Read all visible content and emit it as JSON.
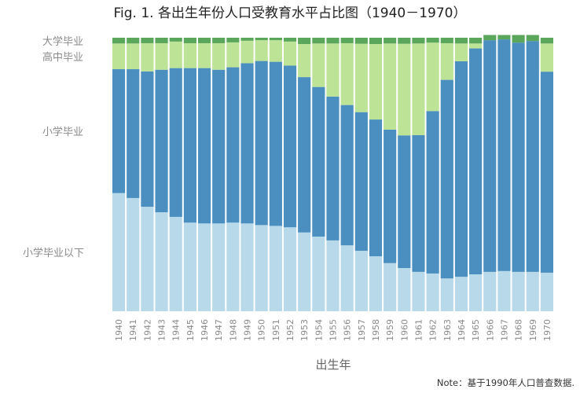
{
  "chart_data": {
    "type": "stacked-bar-100",
    "title": "Fig. 1. 各出生年份人口受教育水平占比图（1940－1970）",
    "xlabel": "出生年",
    "ylabel": "",
    "ylim": [
      0,
      100
    ],
    "note": "Note：基于1990年人口普查数据.",
    "categories": [
      "1940",
      "1941",
      "1942",
      "1943",
      "1944",
      "1945",
      "1946",
      "1947",
      "1948",
      "1949",
      "1950",
      "1951",
      "1952",
      "1953",
      "1954",
      "1955",
      "1956",
      "1957",
      "1958",
      "1959",
      "1960",
      "1961",
      "1962",
      "1963",
      "1964",
      "1965",
      "1966",
      "1967",
      "1968",
      "1969",
      "1970"
    ],
    "series": [
      {
        "name": "小学毕业以下",
        "color": "#b8d9ea",
        "values": [
          43.2,
          41.4,
          38.2,
          36.2,
          34.5,
          32.4,
          32.1,
          32.1,
          32.4,
          32.1,
          31.5,
          31.2,
          30.7,
          28.8,
          27.3,
          25.9,
          24.1,
          22.1,
          20.1,
          17.6,
          15.8,
          14.4,
          13.8,
          12.0,
          12.6,
          13.5,
          14.4,
          14.7,
          14.4,
          14.4,
          14.1
        ]
      },
      {
        "name": "小学毕业",
        "color": "#4a8fc0",
        "values": [
          45.3,
          47.1,
          49.5,
          52.1,
          54.4,
          56.5,
          56.8,
          56.2,
          56.8,
          58.6,
          60.0,
          60.0,
          59.1,
          56.8,
          54.7,
          52.6,
          51.3,
          50.7,
          50.0,
          48.8,
          48.5,
          50.0,
          59.4,
          72.6,
          78.8,
          82.6,
          84.7,
          84.7,
          83.8,
          84.4,
          73.5
        ]
      },
      {
        "name": "高中毕业",
        "color": "#bde396",
        "values": [
          9.4,
          9.4,
          10.3,
          9.7,
          9.7,
          9.1,
          9.1,
          9.7,
          9.1,
          8.2,
          7.6,
          7.9,
          8.8,
          12.1,
          15.9,
          19.4,
          22.6,
          25.0,
          27.6,
          31.5,
          33.5,
          33.5,
          25.0,
          13.4,
          6.5,
          1.8,
          -1.0,
          -1.0,
          -1.0,
          -1.0,
          10.3
        ]
      },
      {
        "name": "大学毕业",
        "color": "#5aa65a",
        "values": [
          2.1,
          2.1,
          2.0,
          2.0,
          1.4,
          2.0,
          2.0,
          2.0,
          1.7,
          1.1,
          0.9,
          0.9,
          1.4,
          2.3,
          2.1,
          2.1,
          2.0,
          2.2,
          2.3,
          2.1,
          2.2,
          2.1,
          1.8,
          2.0,
          2.1,
          2.1,
          1.9,
          1.6,
          2.8,
          2.2,
          2.1
        ]
      }
    ]
  }
}
